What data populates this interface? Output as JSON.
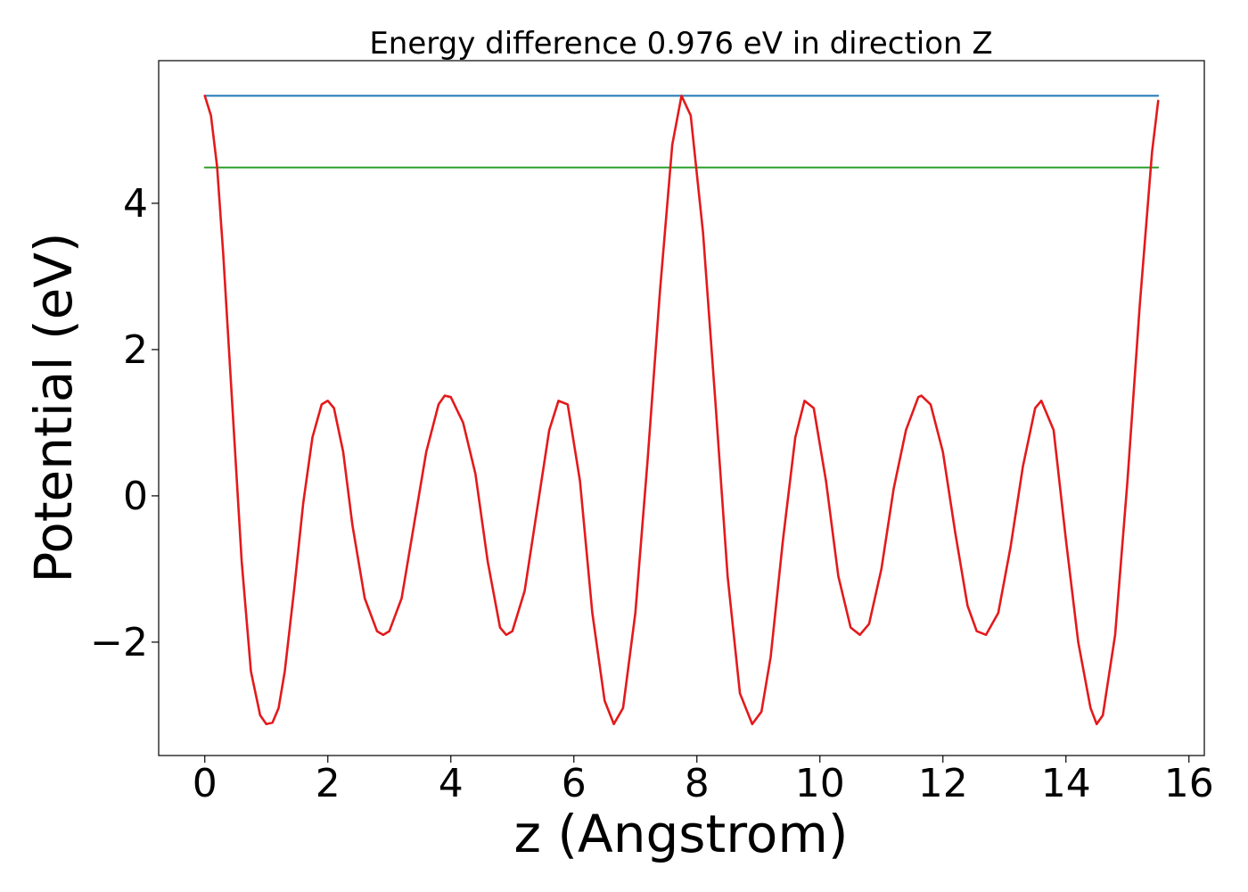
{
  "chart_data": {
    "type": "line",
    "title": "Energy difference 0.976 eV in direction Z",
    "xlabel": "z (Angstrom)",
    "ylabel": "Potential (eV)",
    "xlim": [
      -0.75,
      16.25
    ],
    "ylim": [
      -3.55,
      5.95
    ],
    "xticks": [
      0,
      2,
      4,
      6,
      8,
      10,
      12,
      14,
      16
    ],
    "xtick_labels": [
      "0",
      "2",
      "4",
      "6",
      "8",
      "10",
      "12",
      "14",
      "16"
    ],
    "yticks": [
      -2,
      0,
      2,
      4
    ],
    "ytick_labels": [
      "−2",
      "0",
      "2",
      "4"
    ],
    "grid": false,
    "colors": {
      "potential": "#e31a1c",
      "max_line": "#1f77b4",
      "min_line": "#2ca02c"
    },
    "series": [
      {
        "key": "potential",
        "x": [
          0.0,
          0.1,
          0.2,
          0.3,
          0.45,
          0.6,
          0.75,
          0.9,
          1.0,
          1.1,
          1.2,
          1.3,
          1.45,
          1.6,
          1.75,
          1.9,
          2.0,
          2.1,
          2.25,
          2.4,
          2.6,
          2.8,
          2.9,
          3.0,
          3.2,
          3.4,
          3.6,
          3.8,
          3.9,
          4.0,
          4.2,
          4.4,
          4.6,
          4.8,
          4.9,
          5.0,
          5.2,
          5.4,
          5.6,
          5.75,
          5.9,
          6.1,
          6.3,
          6.5,
          6.65,
          6.8,
          7.0,
          7.2,
          7.4,
          7.6,
          7.75,
          7.9,
          8.1,
          8.3,
          8.5,
          8.7,
          8.9,
          9.05,
          9.2,
          9.4,
          9.6,
          9.75,
          9.9,
          10.1,
          10.3,
          10.5,
          10.65,
          10.8,
          11.0,
          11.2,
          11.4,
          11.6,
          11.65,
          11.8,
          12.0,
          12.2,
          12.4,
          12.55,
          12.7,
          12.9,
          13.1,
          13.3,
          13.5,
          13.6,
          13.8,
          14.0,
          14.2,
          14.4,
          14.5,
          14.6,
          14.8,
          15.0,
          15.2,
          15.4,
          15.5
        ],
        "y": [
          5.47,
          5.2,
          4.5,
          3.3,
          1.2,
          -0.9,
          -2.4,
          -3.0,
          -3.12,
          -3.1,
          -2.9,
          -2.4,
          -1.3,
          -0.1,
          0.8,
          1.25,
          1.3,
          1.2,
          0.6,
          -0.4,
          -1.4,
          -1.85,
          -1.9,
          -1.85,
          -1.4,
          -0.4,
          0.6,
          1.25,
          1.37,
          1.35,
          1.0,
          0.3,
          -0.9,
          -1.8,
          -1.9,
          -1.85,
          -1.3,
          -0.2,
          0.9,
          1.3,
          1.25,
          0.2,
          -1.6,
          -2.8,
          -3.12,
          -2.9,
          -1.6,
          0.5,
          2.8,
          4.8,
          5.47,
          5.2,
          3.6,
          1.3,
          -1.1,
          -2.7,
          -3.12,
          -2.95,
          -2.2,
          -0.6,
          0.8,
          1.3,
          1.2,
          0.2,
          -1.1,
          -1.8,
          -1.9,
          -1.75,
          -1.0,
          0.1,
          0.9,
          1.35,
          1.37,
          1.25,
          0.6,
          -0.5,
          -1.5,
          -1.85,
          -1.9,
          -1.6,
          -0.7,
          0.4,
          1.2,
          1.3,
          0.9,
          -0.6,
          -2.0,
          -2.9,
          -3.12,
          -3.0,
          -1.9,
          0.2,
          2.6,
          4.7,
          5.4
        ]
      },
      {
        "key": "max_line",
        "x": [
          0.0,
          15.5
        ],
        "y": [
          5.47,
          5.47
        ]
      },
      {
        "key": "min_line",
        "x": [
          0.0,
          15.5
        ],
        "y": [
          4.49,
          4.49
        ]
      }
    ]
  }
}
